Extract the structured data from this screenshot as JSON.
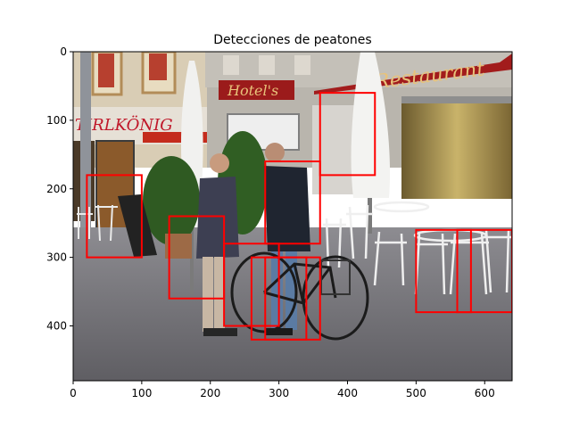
{
  "figure": {
    "title": "Detecciones de peatones"
  },
  "image": {
    "width": 640,
    "height": 480,
    "signs": {
      "store": "TIRLKÖNIG",
      "hotel": "Hotel's",
      "restaurant": "Restaurant"
    }
  },
  "axes": {
    "x_ticks": [
      0,
      100,
      200,
      300,
      400,
      500,
      600
    ],
    "y_ticks": [
      0,
      100,
      200,
      300,
      400
    ],
    "xlim": [
      0,
      640
    ],
    "ylim": [
      480,
      0
    ]
  },
  "detections": {
    "box_color": "#ff0000",
    "boxes": [
      {
        "x1": 20,
        "y1": 180,
        "x2": 100,
        "y2": 300
      },
      {
        "x1": 140,
        "y1": 240,
        "x2": 220,
        "y2": 360
      },
      {
        "x1": 220,
        "y1": 280,
        "x2": 300,
        "y2": 400
      },
      {
        "x1": 260,
        "y1": 300,
        "x2": 340,
        "y2": 420
      },
      {
        "x1": 280,
        "y1": 160,
        "x2": 360,
        "y2": 280
      },
      {
        "x1": 280,
        "y1": 300,
        "x2": 360,
        "y2": 420
      },
      {
        "x1": 360,
        "y1": 60,
        "x2": 440,
        "y2": 180
      },
      {
        "x1": 500,
        "y1": 260,
        "x2": 580,
        "y2": 380
      },
      {
        "x1": 560,
        "y1": 260,
        "x2": 640,
        "y2": 380
      }
    ]
  }
}
